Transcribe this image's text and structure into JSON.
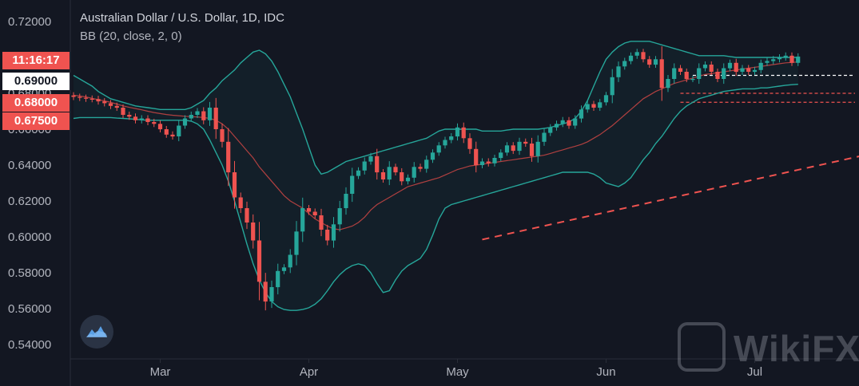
{
  "legend": {
    "title": "Australian Dollar / U.S. Dollar, 1D, IDC",
    "indicator": "BB (20, close, 2, 0)"
  },
  "price_tags": [
    {
      "label": "11:16:17",
      "style": "red",
      "value": 0.6955
    },
    {
      "label": "0.69000",
      "style": "white",
      "value": 0.69
    },
    {
      "label": "0.68000",
      "style": "red",
      "value": 0.68
    },
    {
      "label": "0.67500",
      "style": "red",
      "value": 0.675
    }
  ],
  "watermark": {
    "text": "WikiFX"
  },
  "colors": {
    "background": "#131722",
    "up": "#26a69a",
    "down": "#ef5350",
    "bb_band": "#26a69a",
    "bb_basis": "#b04040",
    "trendline": "#ef5350",
    "axis_text": "#b2b5be"
  },
  "chart_data": {
    "type": "candlestick",
    "title": "Australian Dollar / U.S. Dollar, 1D, IDC",
    "y_ticks": [
      "0.72000",
      "0.70000",
      "0.68000",
      "0.66000",
      "0.64000",
      "0.62000",
      "0.60000",
      "0.58000",
      "0.56000",
      "0.54000"
    ],
    "ylim": [
      0.535,
      0.724
    ],
    "x_ticks": [
      "Mar",
      "Apr",
      "May",
      "Jun",
      "Jul"
    ],
    "grid": false,
    "close": [
      0.678,
      0.6775,
      0.677,
      0.6768,
      0.6755,
      0.6745,
      0.673,
      0.672,
      0.668,
      0.667,
      0.665,
      0.666,
      0.664,
      0.663,
      0.66,
      0.657,
      0.656,
      0.662,
      0.666,
      0.668,
      0.67,
      0.665,
      0.672,
      0.66,
      0.653,
      0.636,
      0.622,
      0.616,
      0.608,
      0.598,
      0.575,
      0.564,
      0.572,
      0.581,
      0.583,
      0.59,
      0.603,
      0.616,
      0.614,
      0.612,
      0.604,
      0.598,
      0.607,
      0.616,
      0.624,
      0.634,
      0.637,
      0.642,
      0.645,
      0.636,
      0.632,
      0.639,
      0.636,
      0.631,
      0.633,
      0.639,
      0.638,
      0.643,
      0.647,
      0.651,
      0.654,
      0.656,
      0.661,
      0.655,
      0.649,
      0.64,
      0.642,
      0.641,
      0.644,
      0.647,
      0.651,
      0.648,
      0.653,
      0.652,
      0.645,
      0.653,
      0.658,
      0.661,
      0.663,
      0.665,
      0.662,
      0.666,
      0.671,
      0.674,
      0.672,
      0.675,
      0.679,
      0.689,
      0.695,
      0.698,
      0.701,
      0.703,
      0.699,
      0.696,
      0.699,
      0.683,
      0.688,
      0.694,
      0.692,
      0.688,
      0.688,
      0.694,
      0.696,
      0.692,
      0.688,
      0.694,
      0.697,
      0.692,
      0.694,
      0.692,
      0.693,
      0.697,
      0.698,
      0.699,
      0.7,
      0.701,
      0.697,
      0.7005
    ],
    "bb_upper": [
      0.69,
      0.688,
      0.686,
      0.684,
      0.681,
      0.679,
      0.677,
      0.676,
      0.675,
      0.674,
      0.673,
      0.6725,
      0.672,
      0.6715,
      0.671,
      0.671,
      0.671,
      0.671,
      0.671,
      0.672,
      0.674,
      0.676,
      0.68,
      0.683,
      0.687,
      0.69,
      0.693,
      0.697,
      0.7,
      0.703,
      0.704,
      0.702,
      0.698,
      0.692,
      0.685,
      0.678,
      0.669,
      0.66,
      0.65,
      0.64,
      0.635,
      0.636,
      0.638,
      0.64,
      0.642,
      0.643,
      0.644,
      0.645,
      0.646,
      0.647,
      0.648,
      0.649,
      0.65,
      0.651,
      0.652,
      0.653,
      0.654,
      0.655,
      0.657,
      0.659,
      0.66,
      0.66,
      0.66,
      0.66,
      0.66,
      0.66,
      0.659,
      0.659,
      0.659,
      0.659,
      0.6595,
      0.66,
      0.66,
      0.66,
      0.66,
      0.66,
      0.6605,
      0.661,
      0.662,
      0.663,
      0.664,
      0.666,
      0.67,
      0.676,
      0.684,
      0.692,
      0.699,
      0.703,
      0.706,
      0.708,
      0.709,
      0.709,
      0.709,
      0.709,
      0.708,
      0.707,
      0.706,
      0.705,
      0.704,
      0.703,
      0.702,
      0.701,
      0.701,
      0.701,
      0.701,
      0.701,
      0.7005,
      0.7,
      0.7,
      0.7,
      0.7,
      0.7,
      0.7,
      0.7,
      0.7,
      0.7,
      0.7,
      0.7
    ],
    "bb_basis": [
      0.679,
      0.6785,
      0.678,
      0.6772,
      0.6765,
      0.6758,
      0.675,
      0.674,
      0.673,
      0.6722,
      0.6715,
      0.6708,
      0.67,
      0.6693,
      0.6687,
      0.6682,
      0.6678,
      0.6675,
      0.6672,
      0.667,
      0.6668,
      0.6665,
      0.666,
      0.665,
      0.663,
      0.66,
      0.656,
      0.652,
      0.648,
      0.644,
      0.639,
      0.635,
      0.631,
      0.627,
      0.623,
      0.62,
      0.618,
      0.616,
      0.613,
      0.61,
      0.608,
      0.606,
      0.6045,
      0.604,
      0.605,
      0.606,
      0.608,
      0.611,
      0.615,
      0.618,
      0.62,
      0.622,
      0.624,
      0.626,
      0.628,
      0.629,
      0.63,
      0.631,
      0.632,
      0.633,
      0.6345,
      0.636,
      0.6375,
      0.6385,
      0.6395,
      0.64,
      0.6405,
      0.641,
      0.6415,
      0.642,
      0.6425,
      0.643,
      0.6435,
      0.644,
      0.6445,
      0.645,
      0.6455,
      0.6465,
      0.6475,
      0.6485,
      0.6495,
      0.6505,
      0.6515,
      0.653,
      0.655,
      0.657,
      0.6595,
      0.662,
      0.665,
      0.668,
      0.671,
      0.674,
      0.677,
      0.679,
      0.681,
      0.6825,
      0.684,
      0.6855,
      0.6865,
      0.6875,
      0.6885,
      0.6895,
      0.6905,
      0.691,
      0.6915,
      0.692,
      0.6925,
      0.693,
      0.6935,
      0.694,
      0.6945,
      0.695,
      0.6955,
      0.696,
      0.6965,
      0.697,
      0.6972,
      0.6975
    ],
    "bb_lower": [
      0.666,
      0.6665,
      0.6665,
      0.6665,
      0.6665,
      0.6665,
      0.6665,
      0.6662,
      0.666,
      0.6658,
      0.6655,
      0.6652,
      0.665,
      0.665,
      0.665,
      0.665,
      0.665,
      0.665,
      0.665,
      0.6645,
      0.663,
      0.66,
      0.654,
      0.647,
      0.64,
      0.631,
      0.62,
      0.608,
      0.596,
      0.585,
      0.576,
      0.569,
      0.564,
      0.561,
      0.5595,
      0.559,
      0.559,
      0.5595,
      0.5605,
      0.5625,
      0.5655,
      0.57,
      0.575,
      0.579,
      0.582,
      0.584,
      0.585,
      0.584,
      0.58,
      0.574,
      0.569,
      0.57,
      0.576,
      0.581,
      0.584,
      0.586,
      0.588,
      0.593,
      0.601,
      0.61,
      0.616,
      0.618,
      0.619,
      0.62,
      0.621,
      0.622,
      0.623,
      0.624,
      0.625,
      0.626,
      0.627,
      0.628,
      0.629,
      0.63,
      0.631,
      0.632,
      0.633,
      0.634,
      0.635,
      0.636,
      0.636,
      0.636,
      0.636,
      0.636,
      0.635,
      0.633,
      0.63,
      0.629,
      0.628,
      0.63,
      0.633,
      0.638,
      0.643,
      0.647,
      0.652,
      0.656,
      0.661,
      0.666,
      0.67,
      0.673,
      0.675,
      0.677,
      0.678,
      0.679,
      0.68,
      0.681,
      0.6815,
      0.682,
      0.6825,
      0.6825,
      0.6825,
      0.683,
      0.683,
      0.6835,
      0.684,
      0.6845,
      0.6848,
      0.685
    ],
    "trendline": {
      "x": [
        66,
        196
      ],
      "y": [
        0.5985,
        0.6975
      ],
      "dash": true
    },
    "hlines": [
      {
        "y": 0.69,
        "color": "#ffffff",
        "from": 100,
        "dash": true
      },
      {
        "y": 0.68,
        "color": "#ef5350",
        "from": 98,
        "dash": true
      },
      {
        "y": 0.675,
        "color": "#ef5350",
        "from": 98,
        "dash": true
      }
    ]
  }
}
